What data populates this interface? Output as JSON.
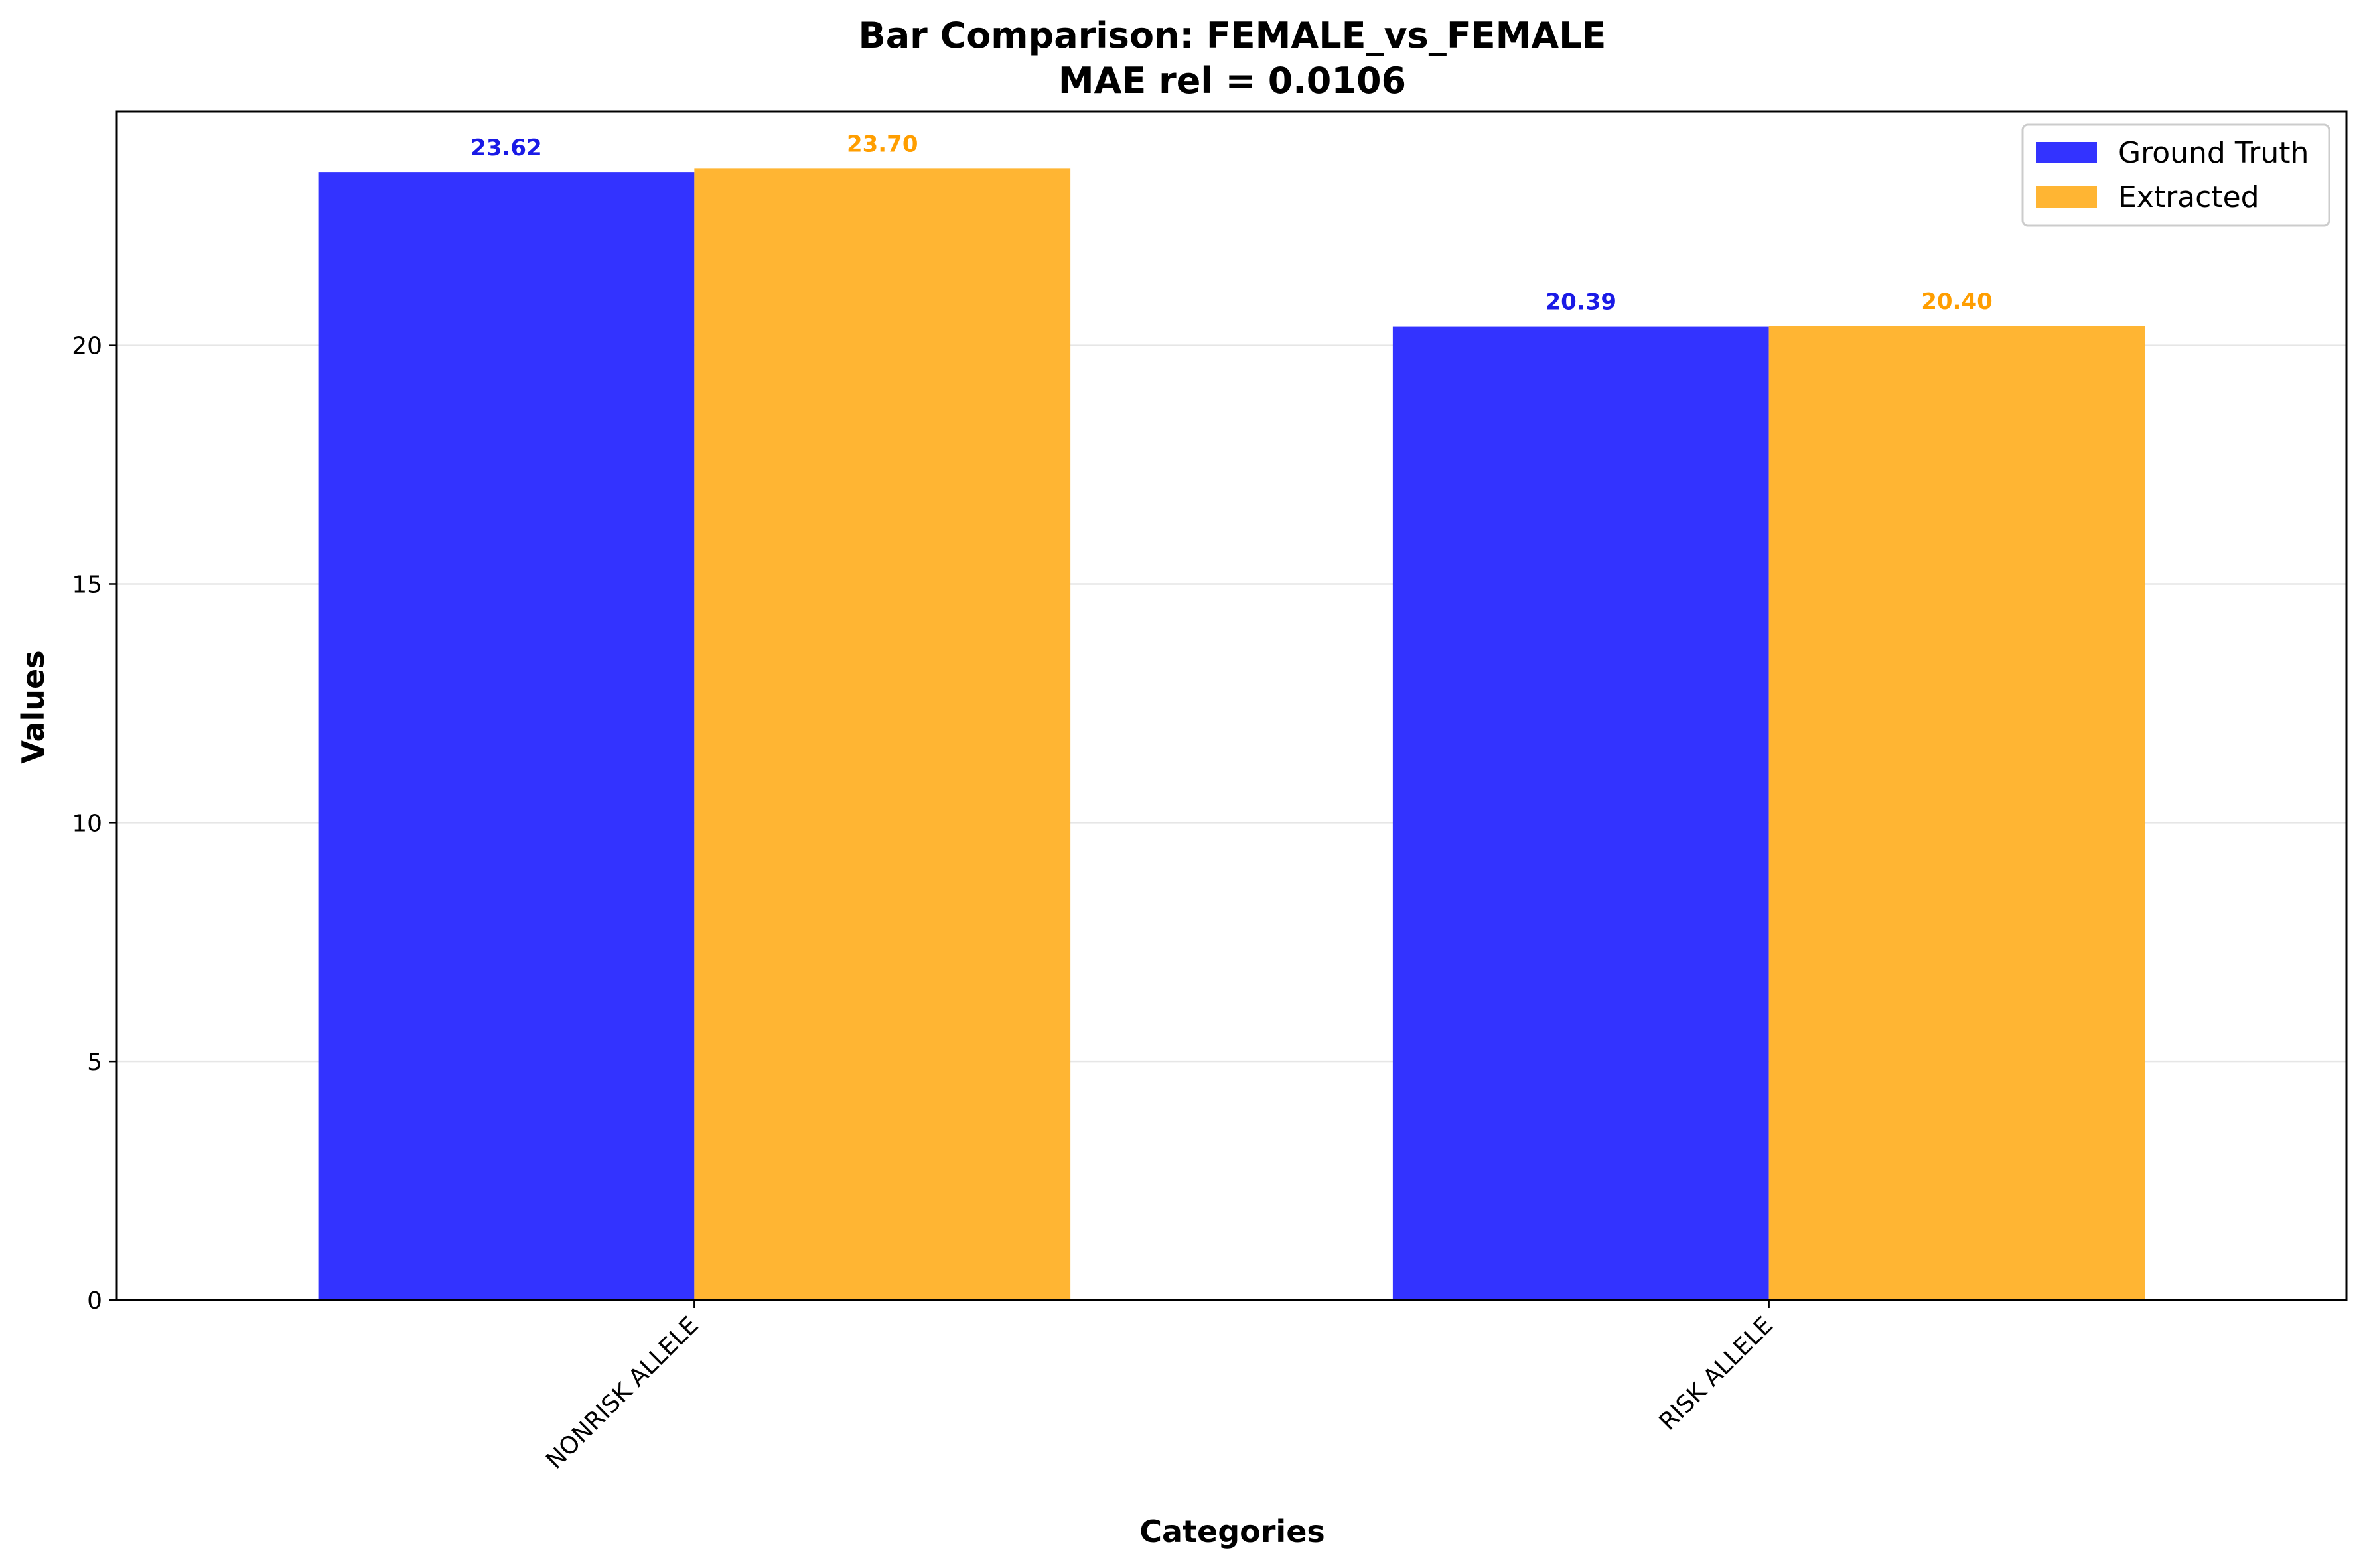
{
  "chart_data": {
    "type": "bar",
    "title": "Bar Comparison: FEMALE_vs_FEMALE",
    "subtitle": "MAE rel = 0.0106",
    "xlabel": "Categories",
    "ylabel": "Values",
    "categories": [
      "NONRISK ALLELE",
      "RISK ALLELE"
    ],
    "series": [
      {
        "name": "Ground Truth",
        "values": [
          23.62,
          20.39
        ],
        "color": "#3333ff",
        "labels": [
          "23.62",
          "20.39"
        ],
        "label_color": "#1a1ae6"
      },
      {
        "name": "Extracted",
        "values": [
          23.7,
          20.4
        ],
        "color": "#ffb533",
        "labels": [
          "23.70",
          "20.40"
        ],
        "label_color": "#ff9e00"
      }
    ],
    "ylim": [
      0,
      24.9
    ],
    "yticks": [
      0,
      5,
      10,
      15,
      20
    ],
    "ytick_labels": [
      "0",
      "5",
      "10",
      "15",
      "20"
    ],
    "grid": true,
    "legend_position": "top-right"
  }
}
